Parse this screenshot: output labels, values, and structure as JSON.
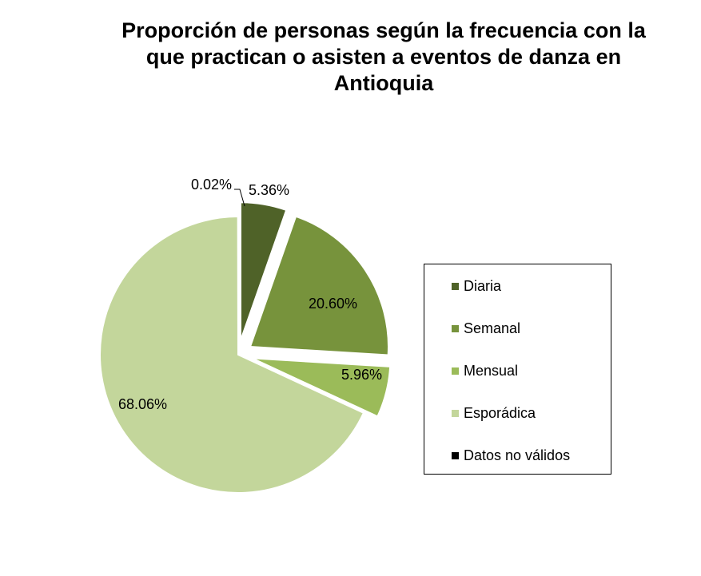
{
  "chart_data": {
    "type": "pie",
    "title": "Proporción de personas según la frecuencia con la que practican o asisten a eventos de danza en Antioquia",
    "slices": [
      {
        "name": "Diaria",
        "value": 5.36,
        "label": "5.36%",
        "color": "#4f6228",
        "exploded": true
      },
      {
        "name": "Semanal",
        "value": 20.6,
        "label": "20.60%",
        "color": "#77933c",
        "exploded": true
      },
      {
        "name": "Mensual",
        "value": 5.96,
        "label": "5.96%",
        "color": "#9bbb59",
        "exploded": true
      },
      {
        "name": "Esporádica",
        "value": 68.06,
        "label": "68.06%",
        "color": "#c3d69b",
        "exploded": false
      },
      {
        "name": "Datos no válidos",
        "value": 0.02,
        "label": "0.02%",
        "color": "#000000",
        "exploded": false
      }
    ],
    "legend_position": "right"
  }
}
